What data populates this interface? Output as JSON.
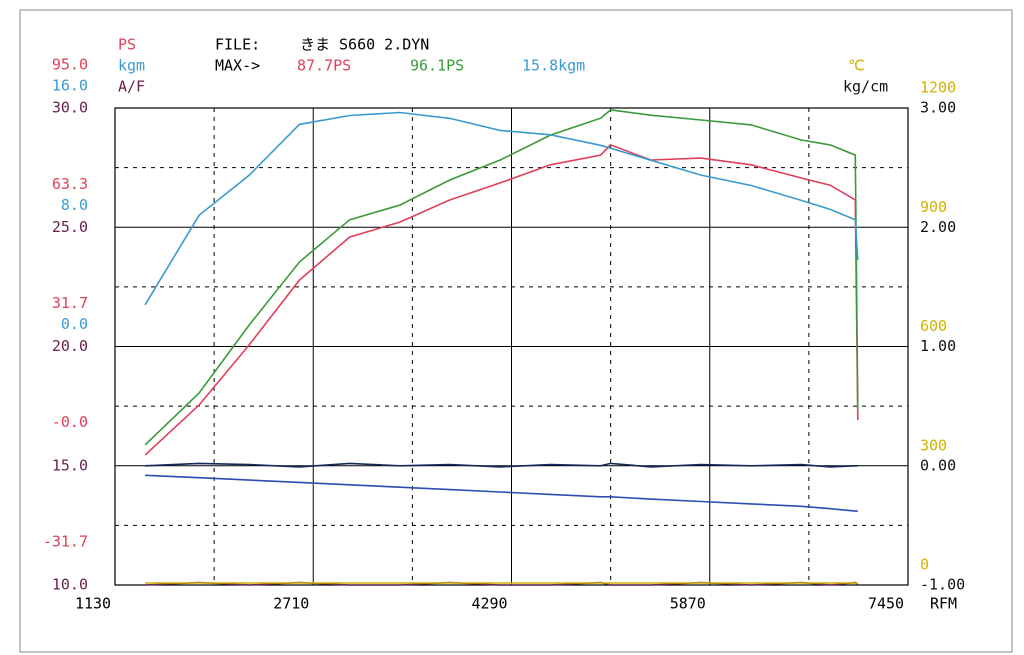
{
  "chart_data": {
    "type": "line",
    "file_label": "FILE:",
    "file_name": "きま S660 2.DYN",
    "max_label": "MAX->",
    "x_label": "RFM",
    "xlim": [
      1130,
      7450
    ],
    "xticks": [
      1130,
      2710,
      4290,
      5870,
      7450
    ],
    "xminorticks": [
      1920,
      3500,
      5080,
      6660
    ],
    "grid": true,
    "x": [
      1370,
      1800,
      2200,
      2600,
      3000,
      3400,
      3800,
      4200,
      4600,
      5000,
      5080,
      5400,
      5800,
      6200,
      6600,
      6830,
      7030,
      7050
    ],
    "axes": [
      {
        "label": "PS",
        "color": "#e0405a",
        "ylim": [
          -31.7,
          95
        ],
        "yticks": [
          {
            "value": 95,
            "label": "95.0"
          },
          63.3,
          31.7,
          {
            "value": 0,
            "label": "-0.0"
          },
          -31.7
        ],
        "series": [
          {
            "color": "#e0405a",
            "max_label": "87.7PS",
            "values": [
              2.8,
              16.1,
              32.1,
              49.3,
              60.7,
              64.7,
              70.6,
              75.1,
              79.9,
              82.5,
              85.2,
              81.2,
              81.7,
              79.9,
              76.4,
              74.5,
              70.6,
              12.1
            ]
          },
          {
            "color": "#3a9a3a",
            "max_label": "96.1PS",
            "values": [
              5.5,
              19.3,
              37.4,
              54.1,
              65.3,
              69.2,
              75.9,
              81.2,
              87.8,
              92.3,
              94.5,
              93.1,
              91.8,
              90.5,
              86.5,
              85.2,
              82.5,
              14.8
            ]
          }
        ]
      },
      {
        "label": "kgm",
        "color": "#3a9ad0",
        "ylim": [
          -16,
          16
        ],
        "yticks": [
          {
            "value": 16,
            "label": "16.0"
          },
          {
            "value": 8,
            "label": "8.0"
          },
          {
            "value": 0,
            "label": "0.0"
          }
        ],
        "series": [
          {
            "color": "#3a9ad0",
            "max_label": "15.8kgm",
            "values": [
              2.8,
              8.8,
              11.5,
              14.9,
              15.5,
              15.7,
              15.3,
              14.5,
              14.2,
              13.5,
              13.3,
              12.5,
              11.5,
              10.8,
              9.8,
              9.2,
              8.5,
              5.8
            ]
          }
        ]
      },
      {
        "label": "A/F",
        "color": "#6a1f4a",
        "ylim": [
          10,
          30
        ],
        "yticks": [
          {
            "value": 30,
            "label": "30.0"
          },
          {
            "value": 25,
            "label": "25.0"
          },
          {
            "value": 20,
            "label": "20.0"
          },
          {
            "value": 15,
            "label": "15.0"
          },
          {
            "value": 10,
            "label": "10.0"
          }
        ],
        "minorticks": [
          27.5,
          22.5,
          17.5,
          12.5
        ],
        "series": [
          {
            "color": "#2a4fb0",
            "values": [
              14.6,
              14.5,
              14.4,
              14.3,
              14.2,
              14.1,
              14.0,
              13.9,
              13.8,
              13.7,
              13.7,
              13.6,
              13.5,
              13.4,
              13.3,
              13.2,
              13.1,
              13.1
            ]
          },
          {
            "color": "#6a2a5a",
            "values": [
              10.0,
              10.1,
              10.0,
              10.1,
              10.0,
              10.0,
              10.1,
              10.0,
              10.0,
              10.1,
              10.0,
              10.0,
              10.1,
              10.0,
              10.1,
              10.0,
              10.1,
              10.0
            ]
          }
        ]
      },
      {
        "label": "℃",
        "color": "#d4b000",
        "ylim": [
          0,
          1200
        ],
        "yticks": [
          1200,
          900,
          600,
          300,
          0
        ],
        "series": [
          {
            "color": "#d4b000",
            "values": [
              5,
              5,
              5,
              5,
              5,
              5,
              5,
              5,
              5,
              5,
              5,
              5,
              5,
              5,
              5,
              5,
              5,
              5
            ]
          }
        ]
      },
      {
        "label": "kg/cm",
        "color": "#111111",
        "ylim": [
          -1,
          3
        ],
        "yticks": [
          {
            "value": 3,
            "label": "3.00"
          },
          {
            "value": 2,
            "label": "2.00"
          },
          {
            "value": 1,
            "label": "1.00"
          },
          {
            "value": 0,
            "label": "0.00"
          },
          {
            "value": -1,
            "label": "-1.00"
          }
        ],
        "series": [
          {
            "color": "#14285a",
            "values": [
              0.0,
              0.02,
              0.01,
              -0.01,
              0.02,
              0.0,
              0.01,
              -0.01,
              0.01,
              0.0,
              0.02,
              -0.01,
              0.01,
              0.0,
              0.01,
              -0.01,
              0.0,
              0.0
            ]
          }
        ]
      }
    ]
  }
}
